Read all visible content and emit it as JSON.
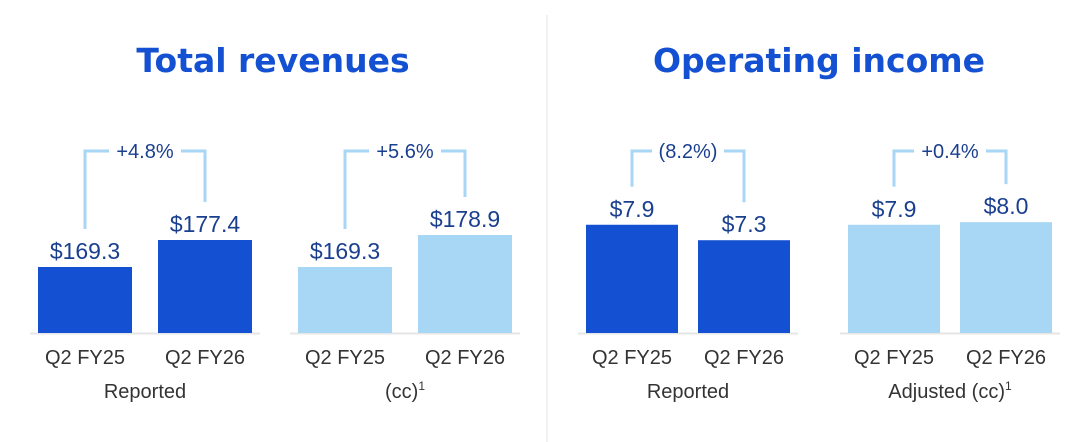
{
  "colors": {
    "dark_blue": "#1450d2",
    "light_blue": "#a8d6f5",
    "title_blue": "#1450d2",
    "label_blue": "#1a3f8f",
    "bracket": "#a8d6f5",
    "axis_text": "#333333",
    "baseline": "#e6e6e6",
    "divider": "#e3e3e3"
  },
  "chart_data": [
    {
      "type": "bar",
      "title": "Total revenues",
      "groups": [
        {
          "group_label": "Reported",
          "color": "dark",
          "categories": [
            "Q2 FY25",
            "Q2 FY26"
          ],
          "values": [
            169.3,
            177.4
          ],
          "value_labels": [
            "$169.3",
            "$177.4"
          ],
          "change_label": "+4.8%"
        },
        {
          "group_label": "(cc)",
          "group_label_sup": "1",
          "color": "light",
          "categories": [
            "Q2 FY25",
            "Q2 FY26"
          ],
          "values": [
            169.3,
            178.9
          ],
          "value_labels": [
            "$169.3",
            "$178.9"
          ],
          "change_label": "+5.6%"
        }
      ]
    },
    {
      "type": "bar",
      "title": "Operating income",
      "groups": [
        {
          "group_label": "Reported",
          "color": "dark",
          "categories": [
            "Q2 FY25",
            "Q2 FY26"
          ],
          "values": [
            7.9,
            7.3
          ],
          "value_labels": [
            "$7.9",
            "$7.3"
          ],
          "change_label": "(8.2%)"
        },
        {
          "group_label": "Adjusted (cc)",
          "group_label_sup": "1",
          "color": "light",
          "categories": [
            "Q2 FY25",
            "Q2 FY26"
          ],
          "values": [
            7.9,
            8.0
          ],
          "value_labels": [
            "$7.9",
            "$8.0"
          ],
          "change_label": "+0.4%"
        }
      ]
    }
  ]
}
